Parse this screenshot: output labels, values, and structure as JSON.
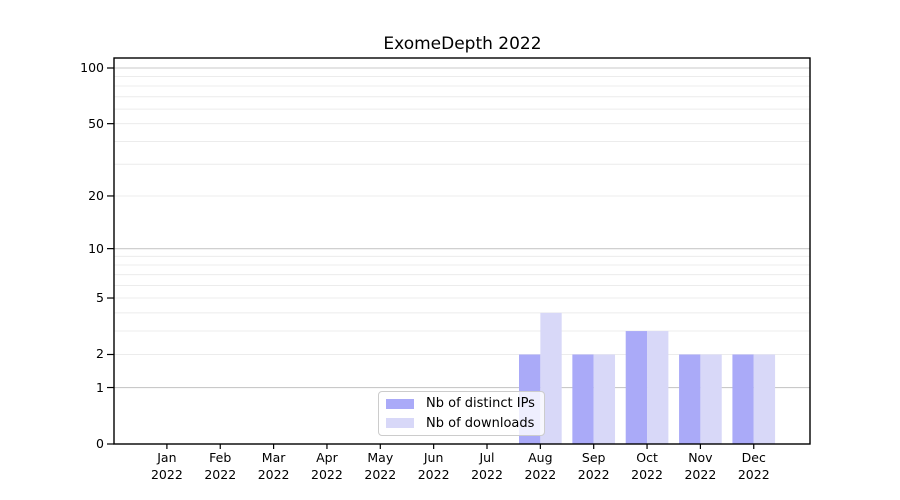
{
  "chart_data": {
    "type": "bar",
    "title": "ExomeDepth 2022",
    "categories": [
      "Jan 2022",
      "Feb 2022",
      "Mar 2022",
      "Apr 2022",
      "May 2022",
      "Jun 2022",
      "Jul 2022",
      "Aug 2022",
      "Sep 2022",
      "Oct 2022",
      "Nov 2022",
      "Dec 2022"
    ],
    "series": [
      {
        "name": "Nb of distinct IPs",
        "color": "#aaaaf8",
        "values": [
          0,
          0,
          0,
          0,
          0,
          0,
          0,
          2,
          2,
          3,
          2,
          2
        ]
      },
      {
        "name": "Nb of downloads",
        "color": "#d8d8f8",
        "values": [
          0,
          0,
          0,
          0,
          0,
          0,
          0,
          4,
          2,
          3,
          2,
          2
        ]
      }
    ],
    "xlabel": "",
    "ylabel": "",
    "y_scale": "log1p",
    "y_ticks": [
      0,
      1,
      2,
      5,
      10,
      20,
      50,
      100
    ],
    "grid_major": [
      1,
      10,
      100
    ],
    "grid_minor": [
      2,
      3,
      4,
      5,
      6,
      7,
      8,
      9,
      20,
      30,
      40,
      50,
      60,
      70,
      80,
      90
    ],
    "ylim": [
      0,
      113
    ],
    "grid": true,
    "legend_position": "inside-bottom-center",
    "colors": {
      "grid_major": "#c9c9c9",
      "grid_minor": "#ececec",
      "axis": "#000000",
      "legend_border": "#cccccc",
      "legend_bg": "rgba(255,255,255,0.8)",
      "background": "#ffffff",
      "text": "#000000"
    }
  }
}
